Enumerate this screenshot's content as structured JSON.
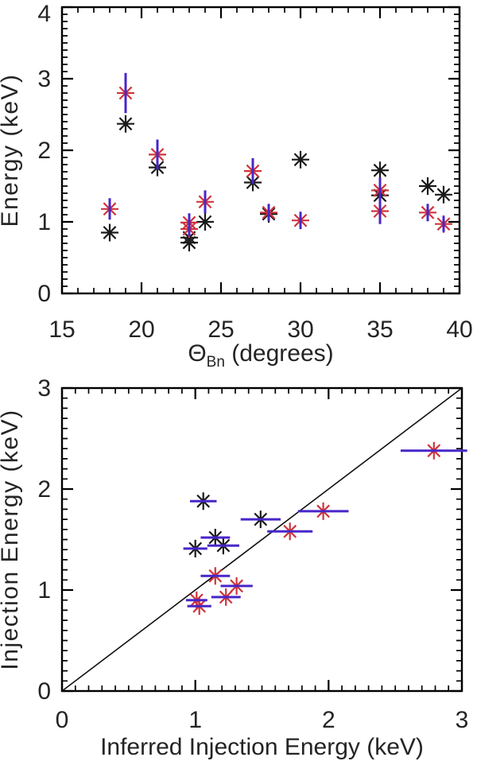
{
  "figure": {
    "description": "Two stacked scatter panels with asterisk markers and blue error bars",
    "background": "#ffffff"
  },
  "palette": {
    "marker_black": "#1a1a1a",
    "marker_red": "#cf3439",
    "error_bar_blue": "#4826c9",
    "axis_color": "#000000",
    "line_color": "#111111",
    "text_color": "#242424",
    "background": "#ffffff"
  },
  "chart_data": [
    {
      "id": "energy-vs-thetabn",
      "type": "scatter",
      "marker": "asterisk",
      "title": "",
      "xlabel": {
        "main": "Θ",
        "sub": "Bn",
        "rest": " (degrees)"
      },
      "ylabel": "Energy (keV)",
      "xlim": [
        15,
        40
      ],
      "ylim": [
        0,
        4
      ],
      "xticks": [
        15,
        20,
        25,
        30,
        35,
        40
      ],
      "yticks": [
        0,
        1,
        2,
        3,
        4
      ],
      "minor_tick_step_x": 1,
      "minor_tick_step_y": 0.1,
      "grid": false,
      "legend": false,
      "identity_line": false,
      "series": [
        {
          "name": "black-asterisks",
          "color_key": "marker_black",
          "error_axis": null,
          "points": [
            [
              18,
              0.85
            ],
            [
              19,
              2.37
            ],
            [
              21,
              1.76
            ],
            [
              23,
              0.78
            ],
            [
              23,
              0.71
            ],
            [
              24,
              1.0
            ],
            [
              27,
              1.55
            ],
            [
              28,
              1.11
            ],
            [
              30,
              1.87
            ],
            [
              35,
              1.72
            ],
            [
              35,
              1.37
            ],
            [
              38,
              1.5
            ],
            [
              39,
              1.38
            ]
          ]
        },
        {
          "name": "red-asterisks",
          "color_key": "marker_red",
          "error_axis": "y",
          "points": [
            [
              18,
              1.18,
              0.15
            ],
            [
              19,
              2.8,
              0.28
            ],
            [
              21,
              1.94,
              0.21
            ],
            [
              23,
              0.99,
              0.13
            ],
            [
              23,
              0.9,
              0.1
            ],
            [
              24,
              1.28,
              0.16
            ],
            [
              27,
              1.71,
              0.18
            ],
            [
              28,
              1.13,
              0.12
            ],
            [
              30,
              1.02,
              0.12
            ],
            [
              35,
              1.44,
              0.18
            ],
            [
              35,
              1.15,
              0.18
            ],
            [
              38,
              1.13,
              0.12
            ],
            [
              39,
              0.97,
              0.11
            ]
          ]
        }
      ]
    },
    {
      "id": "injection-vs-inferred",
      "type": "scatter",
      "marker": "asterisk",
      "title": "",
      "xlabel": {
        "main": "",
        "sub": "",
        "rest": "Inferred Injection Energy (keV)"
      },
      "ylabel": "Injection Energy (keV)",
      "xlim": [
        0,
        3
      ],
      "ylim": [
        0,
        3
      ],
      "xticks": [
        0,
        1,
        2,
        3
      ],
      "yticks": [
        0,
        1,
        2,
        3
      ],
      "minor_tick_step_x": 0.1,
      "minor_tick_step_y": 0.1,
      "grid": false,
      "legend": false,
      "identity_line": true,
      "series": [
        {
          "name": "black-asterisks",
          "color_key": "marker_black",
          "error_axis": "x",
          "points": [
            [
              1.06,
              1.88,
              0.1
            ],
            [
              1.49,
              1.7,
              0.15
            ],
            [
              1.15,
              1.52,
              0.11
            ],
            [
              1.21,
              1.44,
              0.12
            ],
            [
              1.0,
              1.41,
              0.09
            ]
          ]
        },
        {
          "name": "red-asterisks",
          "color_key": "marker_red",
          "error_axis": "x",
          "points": [
            [
              2.79,
              2.38,
              0.25
            ],
            [
              1.96,
              1.78,
              0.19
            ],
            [
              1.71,
              1.58,
              0.17
            ],
            [
              1.15,
              1.14,
              0.11
            ],
            [
              1.31,
              1.04,
              0.12
            ],
            [
              1.23,
              0.93,
              0.11
            ],
            [
              1.01,
              0.9,
              0.08
            ],
            [
              1.03,
              0.84,
              0.09
            ]
          ]
        }
      ]
    }
  ]
}
